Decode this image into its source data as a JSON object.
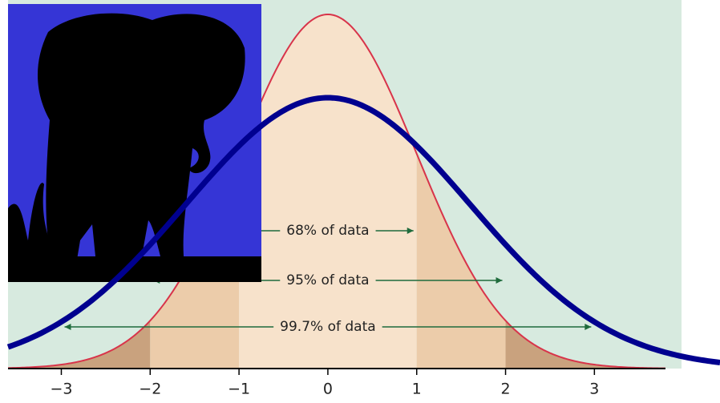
{
  "chart_data": {
    "type": "density",
    "xlim": [
      -3.6,
      3.8
    ],
    "xticks": [
      {
        "value": -3,
        "label": "−3"
      },
      {
        "value": -2,
        "label": "−2"
      },
      {
        "value": -1,
        "label": "−1"
      },
      0,
      1,
      2,
      3
    ],
    "annotations": [
      "68% of data",
      "95% of data",
      "99.7% of data"
    ]
  }
}
